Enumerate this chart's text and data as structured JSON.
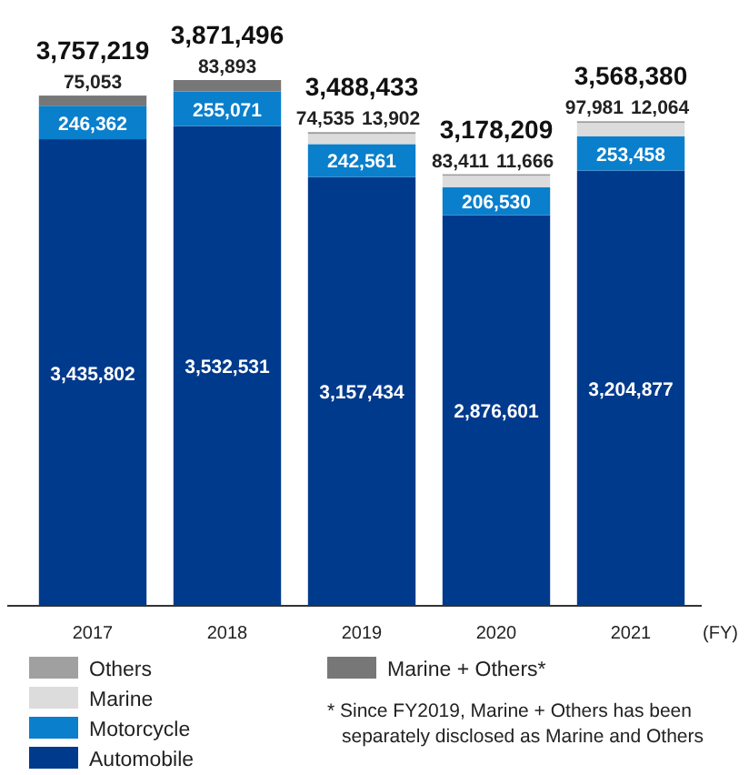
{
  "chart_data": {
    "type": "bar",
    "stacked": true,
    "xlabel": "(FY)",
    "legend": "bottom",
    "categories": [
      "2017",
      "2018",
      "2019",
      "2020",
      "2021"
    ],
    "series": [
      {
        "name": "Automobile",
        "color": "#003a8c",
        "values": [
          3435802,
          3532531,
          3157434,
          2876601,
          3204877
        ],
        "value_labels": [
          "3,435,802",
          "3,532,531",
          "3,157,434",
          "2,876,601",
          "3,204,877"
        ]
      },
      {
        "name": "Motorcycle",
        "color": "#0a7fcc",
        "values": [
          246362,
          255071,
          242561,
          206530,
          253458
        ],
        "value_labels": [
          "246,362",
          "255,071",
          "242,561",
          "206,530",
          "253,458"
        ]
      },
      {
        "name": "Marine",
        "color": "#dcdcdc",
        "values": [
          null,
          null,
          74535,
          83411,
          97981
        ],
        "value_labels": [
          null,
          null,
          "74,535",
          "83,411",
          "97,981"
        ]
      },
      {
        "name": "Others",
        "color": "#a0a0a0",
        "values": [
          null,
          null,
          13902,
          11666,
          12064
        ],
        "value_labels": [
          null,
          null,
          "13,902",
          "11,666",
          "12,064"
        ]
      },
      {
        "name": "Marine + Others*",
        "color": "#777777",
        "values": [
          75053,
          83893,
          null,
          null,
          null
        ],
        "value_labels": [
          "75,053",
          "83,893",
          null,
          null,
          null
        ]
      }
    ],
    "totals": [
      "3,757,219",
      "3,871,496",
      "3,488,433",
      "3,178,209",
      "3,568,380"
    ],
    "annotations": [
      "* Since FY2019, Marine + Others has been separately disclosed as Marine and Others"
    ]
  }
}
